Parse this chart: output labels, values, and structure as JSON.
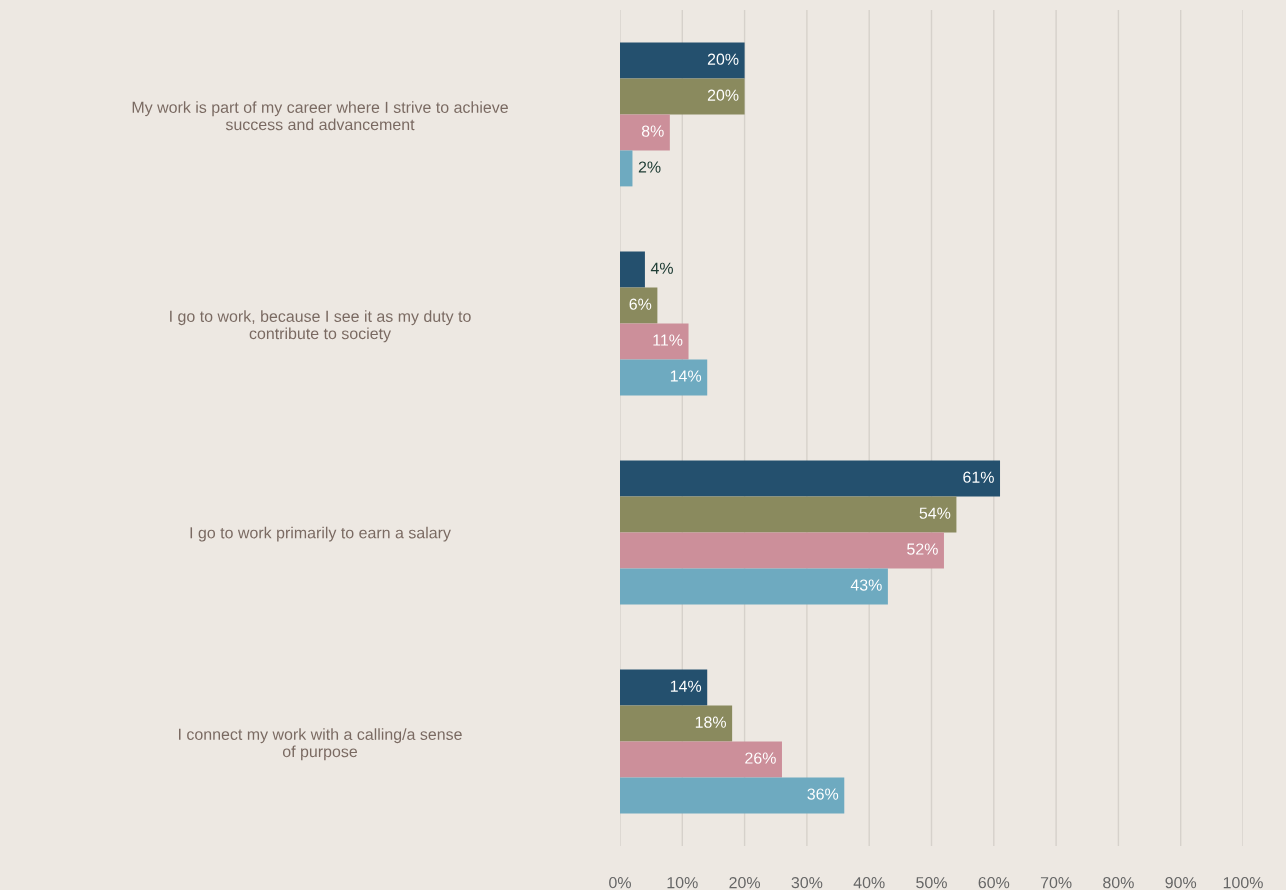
{
  "chart_data": {
    "type": "bar",
    "orientation": "horizontal",
    "categories": [
      "My work is part of my career where I strive to achieve\nsuccess and advancement",
      "I go to work, because I see it as my duty to\ncontribute to society",
      "I go to work primarily to earn a salary",
      "I connect my work with a calling/a sense\nof purpose"
    ],
    "series": [
      {
        "color": "#24506e",
        "values": [
          20,
          4,
          61,
          14
        ],
        "value_labels": [
          "20%",
          "4%",
          "61%",
          "14%"
        ]
      },
      {
        "color": "#8a8a5e",
        "values": [
          20,
          6,
          54,
          18
        ],
        "value_labels": [
          "20%",
          "6%",
          "54%",
          "18%"
        ]
      },
      {
        "color": "#cc8f9a",
        "values": [
          8,
          11,
          52,
          26
        ],
        "value_labels": [
          "8%",
          "11%",
          "52%",
          "26%"
        ]
      },
      {
        "color": "#6eaac0",
        "values": [
          2,
          14,
          43,
          36
        ],
        "value_labels": [
          "2%",
          "14%",
          "43%",
          "36%"
        ]
      }
    ],
    "xlim": [
      0,
      100
    ],
    "xticks": [
      {
        "value": 0,
        "label": "0%"
      },
      {
        "value": 10,
        "label": "10%"
      },
      {
        "value": 20,
        "label": "20%"
      },
      {
        "value": 30,
        "label": "30%"
      },
      {
        "value": 40,
        "label": "40%"
      },
      {
        "value": 50,
        "label": "50%"
      },
      {
        "value": 60,
        "label": "60%"
      },
      {
        "value": 70,
        "label": "70%"
      },
      {
        "value": 80,
        "label": "80%"
      },
      {
        "value": 90,
        "label": "90%"
      },
      {
        "value": 100,
        "label": "100%"
      }
    ],
    "grid": "x",
    "legend": false
  }
}
